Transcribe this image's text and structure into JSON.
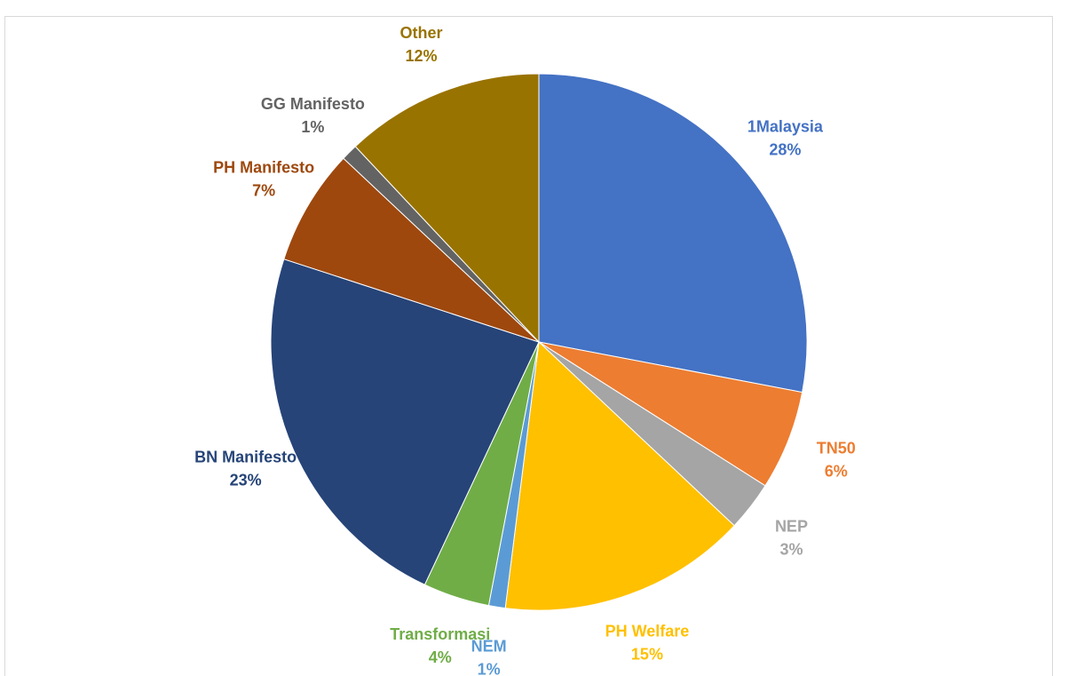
{
  "chart_data": {
    "type": "pie",
    "categories": [
      "1Malaysia",
      "TN50",
      "NEP",
      "PH Welfare",
      "NEM",
      "Transformasi",
      "BN Manifesto",
      "PH Manifesto",
      "GG Manifesto",
      "Other"
    ],
    "values": [
      28,
      6,
      3,
      15,
      1,
      4,
      23,
      7,
      1,
      12
    ],
    "value_labels": [
      "28%",
      "6%",
      "3%",
      "15%",
      "1%",
      "4%",
      "23%",
      "7%",
      "1%",
      "12%"
    ],
    "colors": [
      "#4472c4",
      "#ed7d31",
      "#a5a5a5",
      "#ffc000",
      "#5b9bd5",
      "#70ad47",
      "#264478",
      "#9e480e",
      "#636363",
      "#997300"
    ]
  }
}
